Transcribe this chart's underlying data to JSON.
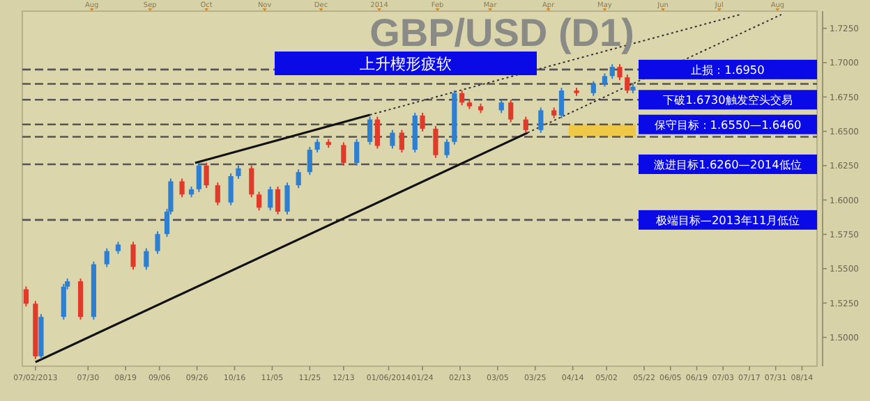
{
  "chart_data": {
    "type": "candlestick",
    "title": "GBP/USD (D1)",
    "x": [
      "2013-06-27",
      "2013-07-02",
      "2013-07-05",
      "2013-07-17",
      "2013-07-19",
      "2013-07-26",
      "2013-08-02",
      "2013-08-09",
      "2013-08-15",
      "2013-08-23",
      "2013-08-30",
      "2013-09-05",
      "2013-09-10",
      "2013-09-12",
      "2013-09-18",
      "2013-09-23",
      "2013-09-27",
      "2013-10-01",
      "2013-10-07",
      "2013-10-14",
      "2013-10-18",
      "2013-10-25",
      "2013-10-29",
      "2013-11-04",
      "2013-11-08",
      "2013-11-13",
      "2013-11-19",
      "2013-11-25",
      "2013-11-29",
      "2013-12-05",
      "2013-12-13",
      "2013-12-20",
      "2013-12-27",
      "2013-12-31",
      "2014-01-08",
      "2014-01-13",
      "2014-01-20",
      "2014-01-24",
      "2014-01-31",
      "2014-02-06",
      "2014-02-10",
      "2014-02-14",
      "2014-02-18",
      "2014-02-24",
      "2014-03-07",
      "2014-03-12",
      "2014-03-20",
      "2014-03-28",
      "2014-04-04",
      "2014-04-08",
      "2014-04-16",
      "2014-04-25",
      "2014-05-01",
      "2014-05-05",
      "2014-05-09",
      "2014-05-13",
      "2014-05-16"
    ],
    "ohlc": [
      [
        1.535,
        1.537,
        1.5225,
        1.5245
      ],
      [
        1.5245,
        1.5265,
        1.4842,
        1.4862
      ],
      [
        1.4862,
        1.5169,
        1.4842,
        1.5149
      ],
      [
        1.5149,
        1.5389,
        1.5129,
        1.5369
      ],
      [
        1.5369,
        1.5428,
        1.5349,
        1.5408
      ],
      [
        1.5408,
        1.5428,
        1.5129,
        1.5149
      ],
      [
        1.5149,
        1.5552,
        1.5129,
        1.5532
      ],
      [
        1.5532,
        1.5648,
        1.5512,
        1.5628
      ],
      [
        1.5628,
        1.5696,
        1.5608,
        1.5676
      ],
      [
        1.5676,
        1.5696,
        1.5493,
        1.5513
      ],
      [
        1.5513,
        1.5648,
        1.5493,
        1.5628
      ],
      [
        1.5628,
        1.5772,
        1.5608,
        1.5752
      ],
      [
        1.5752,
        1.5935,
        1.5732,
        1.5915
      ],
      [
        1.5915,
        1.6156,
        1.5895,
        1.6136
      ],
      [
        1.6136,
        1.6156,
        1.602,
        1.604
      ],
      [
        1.604,
        1.6098,
        1.602,
        1.6078
      ],
      [
        1.6078,
        1.6271,
        1.6058,
        1.6251
      ],
      [
        1.6251,
        1.6271,
        1.6087,
        1.6107
      ],
      [
        1.6107,
        1.6127,
        1.5962,
        1.5982
      ],
      [
        1.5982,
        1.6194,
        1.5962,
        1.6174
      ],
      [
        1.6174,
        1.6251,
        1.6154,
        1.6231
      ],
      [
        1.6231,
        1.6251,
        1.602,
        1.604
      ],
      [
        1.604,
        1.606,
        1.5924,
        1.5944
      ],
      [
        1.5944,
        1.6098,
        1.5924,
        1.6078
      ],
      [
        1.6078,
        1.6098,
        1.5895,
        1.5915
      ],
      [
        1.5915,
        1.6127,
        1.5895,
        1.6107
      ],
      [
        1.6107,
        1.6223,
        1.6087,
        1.6203
      ],
      [
        1.6203,
        1.6386,
        1.6183,
        1.6366
      ],
      [
        1.6366,
        1.6443,
        1.6346,
        1.6423
      ],
      [
        1.6423,
        1.6443,
        1.638,
        1.64
      ],
      [
        1.64,
        1.642,
        1.625,
        1.627
      ],
      [
        1.627,
        1.6443,
        1.625,
        1.6423
      ],
      [
        1.6423,
        1.6606,
        1.6403,
        1.6586
      ],
      [
        1.6586,
        1.6606,
        1.6374,
        1.6394
      ],
      [
        1.6394,
        1.651,
        1.6374,
        1.649
      ],
      [
        1.649,
        1.651,
        1.6346,
        1.6366
      ],
      [
        1.6366,
        1.6635,
        1.6346,
        1.6615
      ],
      [
        1.6615,
        1.6635,
        1.6499,
        1.6519
      ],
      [
        1.6519,
        1.6539,
        1.6307,
        1.6327
      ],
      [
        1.6327,
        1.6443,
        1.6307,
        1.6423
      ],
      [
        1.6423,
        1.6798,
        1.6403,
        1.6778
      ],
      [
        1.6778,
        1.6798,
        1.669,
        1.671
      ],
      [
        1.671,
        1.673,
        1.6662,
        1.6682
      ],
      [
        1.6682,
        1.6702,
        1.6633,
        1.6653
      ],
      [
        1.6653,
        1.673,
        1.6633,
        1.671
      ],
      [
        1.671,
        1.673,
        1.6566,
        1.6586
      ],
      [
        1.6586,
        1.6606,
        1.6489,
        1.6509
      ],
      [
        1.6509,
        1.6673,
        1.6489,
        1.6653
      ],
      [
        1.6653,
        1.6673,
        1.6595,
        1.6615
      ],
      [
        1.6615,
        1.6817,
        1.6595,
        1.6797
      ],
      [
        1.6797,
        1.6817,
        1.6758,
        1.6778
      ],
      [
        1.6778,
        1.6865,
        1.6758,
        1.6845
      ],
      [
        1.6845,
        1.6922,
        1.6825,
        1.6902
      ],
      [
        1.6902,
        1.6989,
        1.6882,
        1.6969
      ],
      [
        1.6969,
        1.6989,
        1.6873,
        1.6893
      ],
      [
        1.6893,
        1.6913,
        1.6777,
        1.6797
      ],
      [
        1.6797,
        1.6845,
        1.6777,
        1.6825
      ]
    ],
    "colors": [
      "#e03a2a",
      "#e03a2a",
      "#2f7fd0",
      "#2f7fd0",
      "#2f7fd0",
      "#e03a2a",
      "#2f7fd0",
      "#2f7fd0",
      "#2f7fd0",
      "#e03a2a",
      "#2f7fd0",
      "#2f7fd0",
      "#2f7fd0",
      "#2f7fd0",
      "#e03a2a",
      "#2f7fd0",
      "#2f7fd0",
      "#e03a2a",
      "#e03a2a",
      "#2f7fd0",
      "#2f7fd0",
      "#e03a2a",
      "#e03a2a",
      "#2f7fd0",
      "#e03a2a",
      "#2f7fd0",
      "#2f7fd0",
      "#2f7fd0",
      "#2f7fd0",
      "#e03a2a",
      "#e03a2a",
      "#2f7fd0",
      "#2f7fd0",
      "#e03a2a",
      "#2f7fd0",
      "#e03a2a",
      "#2f7fd0",
      "#e03a2a",
      "#e03a2a",
      "#2f7fd0",
      "#2f7fd0",
      "#e03a2a",
      "#e03a2a",
      "#e03a2a",
      "#2f7fd0",
      "#e03a2a",
      "#e03a2a",
      "#2f7fd0",
      "#e03a2a",
      "#2f7fd0",
      "#e03a2a",
      "#2f7fd0",
      "#2f7fd0",
      "#2f7fd0",
      "#e03a2a",
      "#e03a2a",
      "#2f7fd0"
    ],
    "series": [
      {
        "type": "line",
        "x": [
          "2013-09-25",
          "2013-12-27"
        ],
        "values": [
          1.627,
          1.662
        ],
        "color": "#111111",
        "line_style": "solid"
      },
      {
        "type": "line",
        "x": [
          "2013-12-27",
          "2014-07-12"
        ],
        "values": [
          1.662,
          1.735
        ],
        "color": "#333333",
        "line_style": "dotted"
      },
      {
        "type": "line",
        "x": [
          "2013-07-02",
          "2014-03-21"
        ],
        "values": [
          1.482,
          1.649
        ],
        "color": "#111111",
        "line_style": "solid"
      },
      {
        "type": "line",
        "x": [
          "2014-03-21",
          "2014-08-03"
        ],
        "values": [
          1.649,
          1.735
        ],
        "color": "#333333",
        "line_style": "dotted"
      }
    ],
    "xlim": [
      "2013-06-25",
      "2014-08-22"
    ],
    "xticks": [
      {
        "value": "2013-07-02",
        "label": "07/02/2013"
      },
      {
        "value": "2013-07-30",
        "label": "07/30"
      },
      {
        "value": "2013-08-19",
        "label": "08/19"
      },
      {
        "value": "2013-09-06",
        "label": "09/06"
      },
      {
        "value": "2013-09-26",
        "label": "09/26"
      },
      {
        "value": "2013-10-16",
        "label": "10/16"
      },
      {
        "value": "2013-11-05",
        "label": "11/05"
      },
      {
        "value": "2013-11-25",
        "label": "11/25"
      },
      {
        "value": "2013-12-13",
        "label": "12/13"
      },
      {
        "value": "2014-01-06",
        "label": "01/06/2014"
      },
      {
        "value": "2014-01-24",
        "label": "01/24"
      },
      {
        "value": "2014-02-13",
        "label": "02/13"
      },
      {
        "value": "2014-03-05",
        "label": "03/05"
      },
      {
        "value": "2014-03-25",
        "label": "03/25"
      },
      {
        "value": "2014-04-14",
        "label": "04/14"
      },
      {
        "value": "2014-05-02",
        "label": "05/02"
      },
      {
        "value": "2014-05-22",
        "label": "05/22"
      },
      {
        "value": "2014-06-05",
        "label": "06/05"
      },
      {
        "value": "2014-06-19",
        "label": "06/19"
      },
      {
        "value": "2014-07-03",
        "label": "07/03"
      },
      {
        "value": "2014-07-17",
        "label": "07/17"
      },
      {
        "value": "2014-07-31",
        "label": "07/31"
      },
      {
        "value": "2014-08-14",
        "label": "08/14"
      }
    ],
    "x2lim": [
      "2013-06-25",
      "2014-08-22"
    ],
    "x2ticks": [
      {
        "value": "2013-08-01",
        "label": "Aug"
      },
      {
        "value": "2013-09-01",
        "label": "Sep"
      },
      {
        "value": "2013-10-01",
        "label": "Oct"
      },
      {
        "value": "2013-11-01",
        "label": "Nov"
      },
      {
        "value": "2013-12-01",
        "label": "Dec"
      },
      {
        "value": "2014-01-01",
        "label": "2014"
      },
      {
        "value": "2014-02-01",
        "label": "Feb"
      },
      {
        "value": "2014-03-01",
        "label": "Mar"
      },
      {
        "value": "2014-04-01",
        "label": "Apr"
      },
      {
        "value": "2014-05-01",
        "label": "May"
      },
      {
        "value": "2014-06-01",
        "label": "Jun"
      },
      {
        "value": "2014-07-01",
        "label": "Jul"
      },
      {
        "value": "2014-08-01",
        "label": "Aug"
      }
    ],
    "ylim": [
      1.479,
      1.7375
    ],
    "yticks": [
      {
        "value": 1.5,
        "label": "1.5000"
      },
      {
        "value": 1.525,
        "label": "1.5250"
      },
      {
        "value": 1.55,
        "label": "1.5500"
      },
      {
        "value": 1.575,
        "label": "1.5750"
      },
      {
        "value": 1.6,
        "label": "1.6000"
      },
      {
        "value": 1.625,
        "label": "1.6250"
      },
      {
        "value": 1.65,
        "label": "1.6500"
      },
      {
        "value": 1.675,
        "label": "1.6750"
      },
      {
        "value": 1.7,
        "label": "1.7000"
      },
      {
        "value": 1.725,
        "label": "1.7250"
      }
    ],
    "ref_lines": [
      {
        "axis": "y",
        "value": 1.695,
        "color": "#555555",
        "line_style": "dashed"
      },
      {
        "axis": "y",
        "value": 1.6845,
        "color": "#555555",
        "line_style": "dashed"
      },
      {
        "axis": "y",
        "value": 1.673,
        "color": "#555555",
        "line_style": "dashed"
      },
      {
        "axis": "y",
        "value": 1.655,
        "color": "#555555",
        "line_style": "dashed"
      },
      {
        "axis": "y",
        "value": 1.646,
        "color": "#555555",
        "line_style": "dashed"
      },
      {
        "axis": "y",
        "value": 1.626,
        "color": "#555555",
        "line_style": "dashed"
      },
      {
        "axis": "y",
        "value": 1.5855,
        "color": "#555555",
        "line_style": "dashed"
      }
    ],
    "bands": [
      {
        "axis": "y",
        "from": 1.646,
        "to": 1.655,
        "color": "#f0c848"
      }
    ],
    "annotations": [
      "上升楔形疲软",
      {
        "text": "止损：1.6950",
        "y": 1.695
      },
      {
        "text": "下破1.6730触发空头交易",
        "y": 1.673
      },
      {
        "text": "保守目标：1.6550—1.6460",
        "y": 1.655
      },
      {
        "text": "激进目标1.6260—2014低位",
        "y": 1.626
      },
      {
        "text": "极端目标—2013年11月低位",
        "y": 1.5855
      }
    ]
  }
}
